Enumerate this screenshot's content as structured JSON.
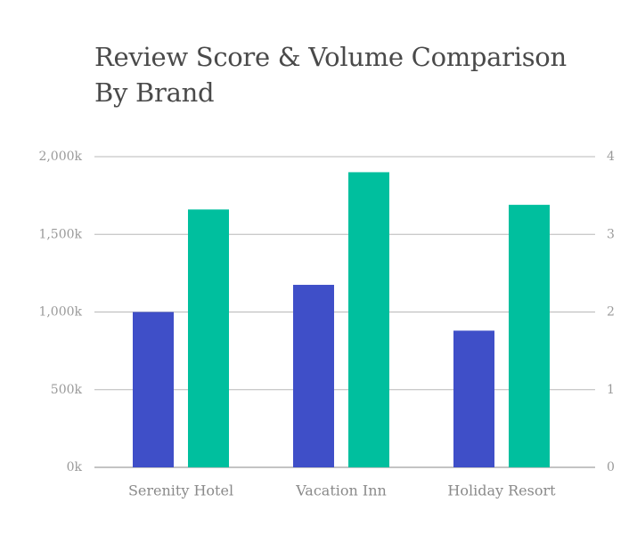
{
  "chart_data": {
    "type": "bar",
    "title_lines": [
      "Review Score & Volume Comparison",
      "By Brand"
    ],
    "categories": [
      "Serenity Hotel",
      "Vacation Inn",
      "Holiday Resort"
    ],
    "series": [
      {
        "axis": "left",
        "color": "#3f4fc8",
        "values": [
          1000,
          1175,
          880
        ]
      },
      {
        "axis": "right",
        "color": "#00bf9e",
        "values": [
          3.32,
          3.8,
          3.38
        ]
      }
    ],
    "y_left": {
      "ylim": [
        0,
        2000
      ],
      "ticks": [
        0,
        500,
        1000,
        1500,
        2000
      ],
      "tick_labels": [
        "0k",
        "500k",
        "1,000k",
        "1,500k",
        "2,000k"
      ]
    },
    "y_right": {
      "ylim": [
        0,
        4
      ],
      "ticks": [
        0,
        1,
        2,
        3,
        4
      ],
      "tick_labels": [
        "0",
        "1",
        "2",
        "3",
        "4"
      ]
    },
    "grid": true,
    "legend": "none",
    "colors": {
      "grid": "#b8b8b8",
      "baseline": "#8a8a8a"
    }
  }
}
